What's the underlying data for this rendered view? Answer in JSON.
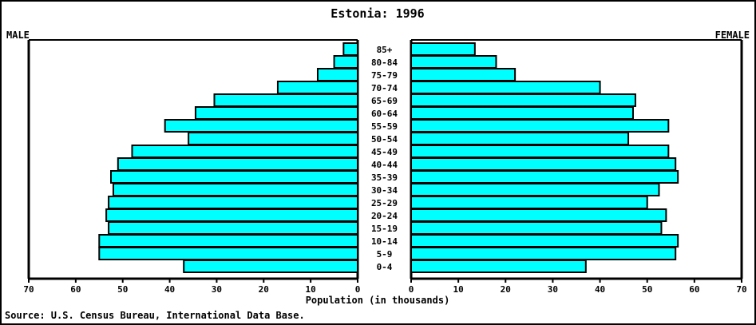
{
  "chart_data": {
    "type": "bar",
    "title": "Estonia: 1996",
    "left_label": "MALE",
    "right_label": "FEMALE",
    "xlabel": "Population (in thousands)",
    "source": "Source: U.S. Census Bureau, International Data Base.",
    "age_groups": [
      "0-4",
      "5-9",
      "10-14",
      "15-19",
      "20-24",
      "25-29",
      "30-34",
      "35-39",
      "40-44",
      "45-49",
      "50-54",
      "55-59",
      "60-64",
      "65-69",
      "70-74",
      "75-79",
      "80-84",
      "85+"
    ],
    "series": [
      {
        "name": "MALE",
        "values": [
          37,
          55,
          55,
          53,
          53.5,
          53,
          52,
          52.5,
          51,
          48,
          36,
          41,
          34.5,
          30.5,
          17,
          8.5,
          5,
          3
        ]
      },
      {
        "name": "FEMALE",
        "values": [
          37,
          56,
          56.5,
          53,
          54,
          50,
          52.5,
          56.5,
          56,
          54.5,
          46,
          54.5,
          47,
          47.5,
          40,
          22,
          18,
          13.5
        ]
      }
    ],
    "x_ticks": [
      70,
      60,
      50,
      40,
      30,
      20,
      10,
      0
    ],
    "xlim": [
      0,
      70
    ],
    "colors": {
      "bar": "#00ffff",
      "outline": "#000000"
    },
    "grid": false
  }
}
